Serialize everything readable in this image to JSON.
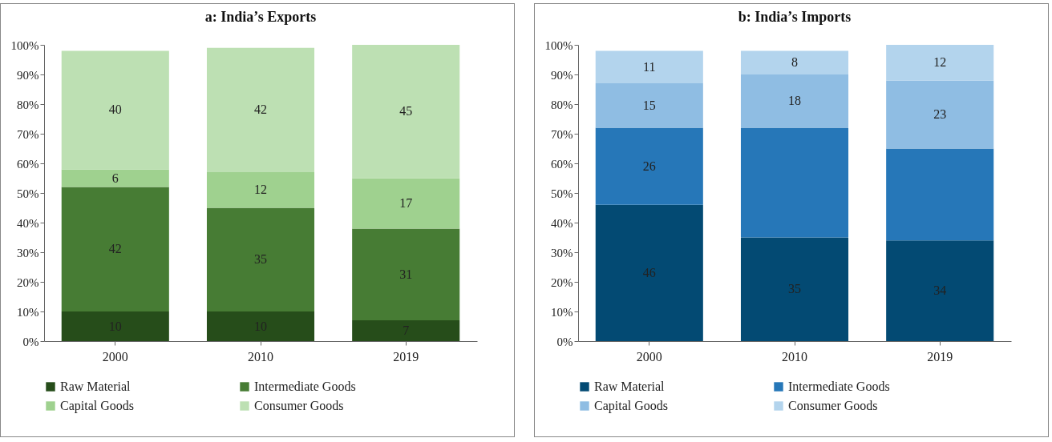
{
  "chart_data": [
    {
      "type": "bar",
      "title": "a: India’s Exports",
      "categories": [
        "2000",
        "2010",
        "2019"
      ],
      "stacked": true,
      "legend": "bottom",
      "grid": false,
      "ylim": [
        0,
        100
      ],
      "yticks": [
        {
          "value": 0,
          "label": "0%"
        },
        {
          "value": 10,
          "label": "10%"
        },
        {
          "value": 20,
          "label": "20%"
        },
        {
          "value": 30,
          "label": "30%"
        },
        {
          "value": 40,
          "label": "40%"
        },
        {
          "value": 50,
          "label": "50%"
        },
        {
          "value": 60,
          "label": "60%"
        },
        {
          "value": 70,
          "label": "70%"
        },
        {
          "value": 80,
          "label": "80%"
        },
        {
          "value": 90,
          "label": "90%"
        },
        {
          "value": 100,
          "label": "100%"
        }
      ],
      "series": [
        {
          "name": "Raw Material",
          "color": "#264d1a",
          "values": [
            10,
            10,
            7
          ],
          "value_labels": [
            "10",
            "10",
            "7"
          ]
        },
        {
          "name": "Intermediate Goods",
          "color": "#477c34",
          "values": [
            42,
            35,
            31
          ],
          "value_labels": [
            "42",
            "35",
            "31"
          ]
        },
        {
          "name": "Capital Goods",
          "color": "#9fd18f",
          "values": [
            6,
            12,
            17
          ],
          "value_labels": [
            "6",
            "12",
            "17"
          ]
        },
        {
          "name": "Consumer Goods",
          "color": "#bde0b3",
          "values": [
            40,
            42,
            45
          ],
          "value_labels": [
            "40",
            "42",
            "45"
          ]
        }
      ]
    },
    {
      "type": "bar",
      "title": "b: India’s Imports",
      "categories": [
        "2000",
        "2010",
        "2019"
      ],
      "stacked": true,
      "legend": "bottom",
      "grid": false,
      "ylim": [
        0,
        100
      ],
      "yticks": [
        {
          "value": 0,
          "label": "0%"
        },
        {
          "value": 10,
          "label": "10%"
        },
        {
          "value": 20,
          "label": "20%"
        },
        {
          "value": 30,
          "label": "30%"
        },
        {
          "value": 40,
          "label": "40%"
        },
        {
          "value": 50,
          "label": "50%"
        },
        {
          "value": 60,
          "label": "60%"
        },
        {
          "value": 70,
          "label": "70%"
        },
        {
          "value": 80,
          "label": "80%"
        },
        {
          "value": 90,
          "label": "90%"
        },
        {
          "value": 100,
          "label": "100%"
        }
      ],
      "series": [
        {
          "name": "Raw Material",
          "color": "#034a73",
          "values": [
            46,
            35,
            34
          ],
          "value_labels": [
            "46",
            "35",
            "34"
          ]
        },
        {
          "name": "Intermediate Goods",
          "color": "#2677b8",
          "values": [
            26,
            37,
            31
          ],
          "value_labels": [
            "26",
            null,
            null
          ]
        },
        {
          "name": "Capital Goods",
          "color": "#8fbde3",
          "values": [
            15,
            18,
            23
          ],
          "value_labels": [
            "15",
            "18",
            "23"
          ]
        },
        {
          "name": "Consumer Goods",
          "color": "#b3d4ed",
          "values": [
            11,
            8,
            12
          ],
          "value_labels": [
            "11",
            "8",
            "12"
          ]
        }
      ]
    }
  ]
}
